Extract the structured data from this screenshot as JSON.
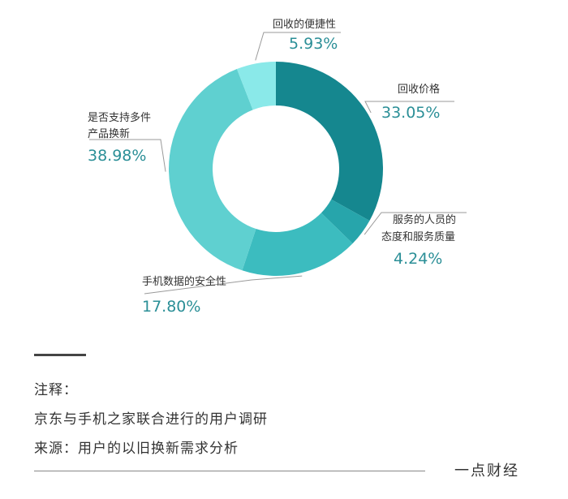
{
  "chart_data": {
    "type": "pie",
    "style": "donut",
    "slices": [
      {
        "label_lines": [
          "回收价格"
        ],
        "value_text": "33.05%",
        "value": 33.05,
        "color": "#15878f"
      },
      {
        "label_lines": [
          "服务的人员的",
          "态度和服务质量"
        ],
        "value_text": "4.24%",
        "value": 4.24,
        "color": "#27a5ab"
      },
      {
        "label_lines": [
          "手机数据的安全性"
        ],
        "value_text": "17.80%",
        "value": 17.8,
        "color": "#3cbcbf"
      },
      {
        "label_lines": [
          "是否支持多件",
          "产品换新"
        ],
        "value_text": "38.98%",
        "value": 38.98,
        "color": "#5fd0d0"
      },
      {
        "label_lines": [
          "回收的便捷性"
        ],
        "value_text": "5.93%",
        "value": 5.93,
        "color": "#8ae9e9"
      }
    ]
  },
  "notes": {
    "heading": "注释：",
    "line1": "京东与手机之家联合进行的用户调研",
    "line2": "来源：用户的以旧换新需求分析"
  },
  "brand": "一点财经"
}
